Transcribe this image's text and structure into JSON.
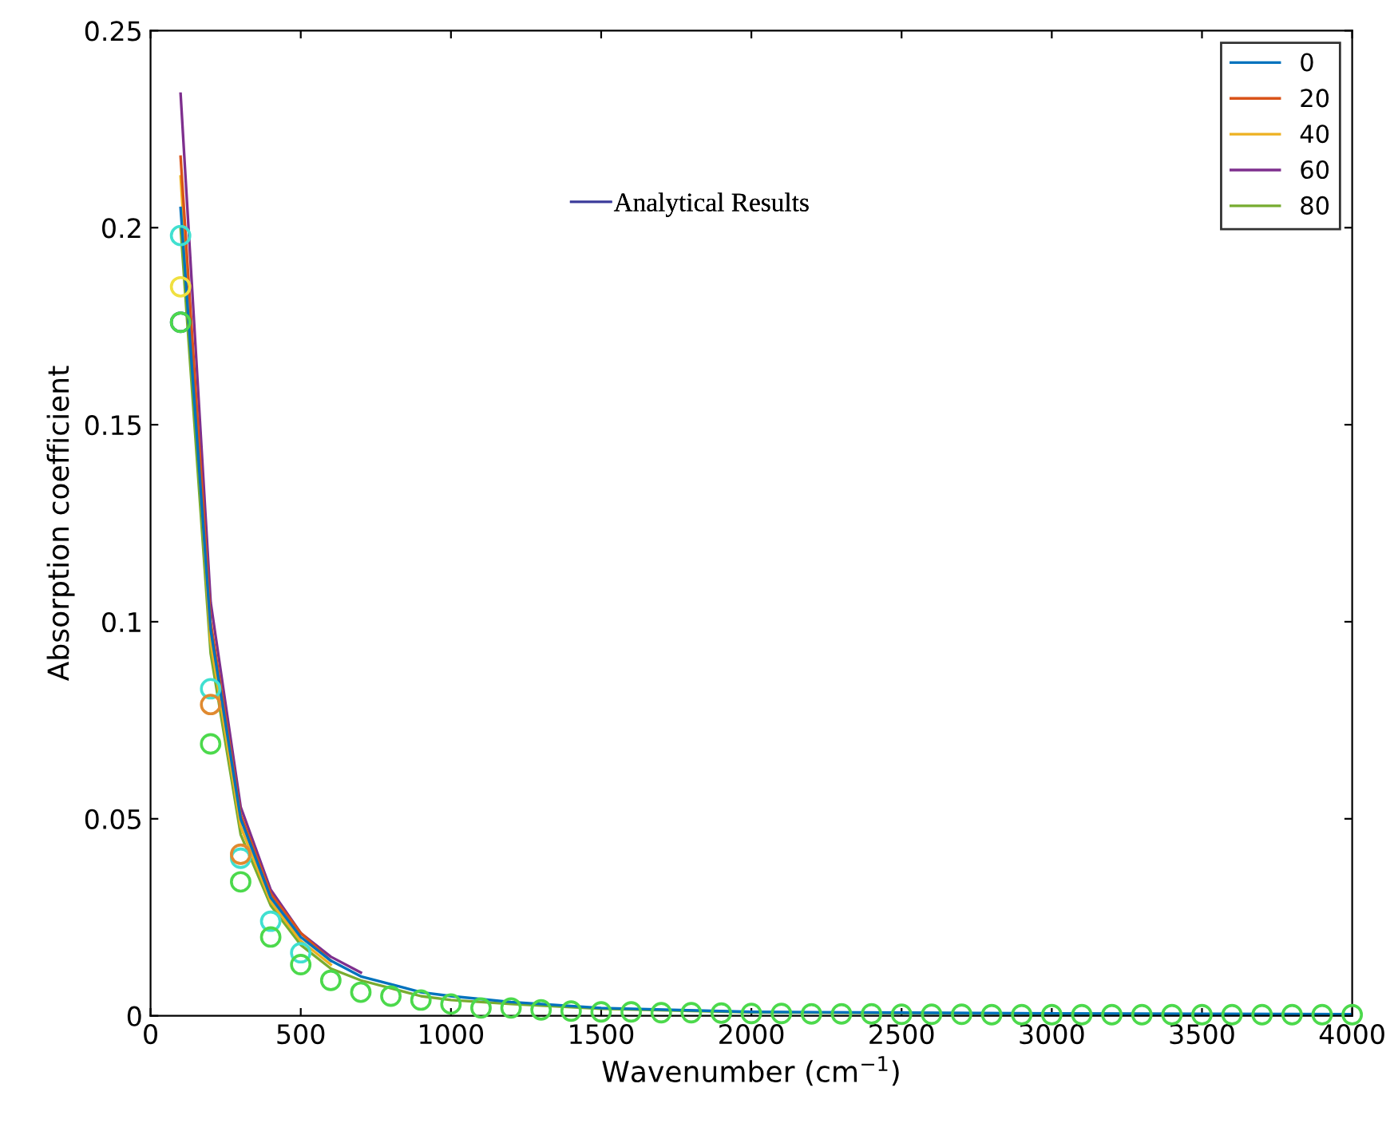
{
  "chart_data": {
    "type": "line",
    "xlabel": "Wavenumber (cm$^{−1}$)",
    "ylabel": "Absorption coefficient",
    "xlim": [
      0,
      4000
    ],
    "ylim": [
      0,
      0.25
    ],
    "xticks": [
      0,
      500,
      1000,
      1500,
      2000,
      2500,
      3000,
      3500,
      4000
    ],
    "yticks": [
      0,
      0.05,
      0.1,
      0.15,
      0.2,
      0.25
    ],
    "grid": false,
    "legend": "top right",
    "annotations": [
      "Analytical Results"
    ],
    "series": [
      {
        "name": "0",
        "color": "#0072bd",
        "x": [
          100,
          200,
          300,
          400,
          500,
          600,
          700,
          800,
          900,
          1000,
          1200,
          1500,
          2000,
          2500,
          3000,
          3500,
          4000
        ],
        "values": [
          0.205,
          0.098,
          0.05,
          0.03,
          0.02,
          0.014,
          0.01,
          0.008,
          0.006,
          0.005,
          0.0035,
          0.002,
          0.001,
          0.0008,
          0.0006,
          0.0005,
          0.0004
        ]
      },
      {
        "name": "20",
        "color": "#d95319",
        "x": [
          100,
          200,
          300,
          400,
          500,
          600
        ],
        "values": [
          0.218,
          0.1,
          0.051,
          0.031,
          0.021,
          0.014
        ]
      },
      {
        "name": "40",
        "color": "#edb120",
        "x": [
          100,
          200,
          300,
          400,
          500,
          600
        ],
        "values": [
          0.213,
          0.095,
          0.048,
          0.029,
          0.019,
          0.013
        ]
      },
      {
        "name": "60",
        "color": "#7e2f8e",
        "x": [
          100,
          200,
          300,
          400,
          500,
          600,
          700
        ],
        "values": [
          0.234,
          0.105,
          0.053,
          0.032,
          0.021,
          0.015,
          0.011
        ]
      },
      {
        "name": "80",
        "color": "#77ac30",
        "x": [
          100,
          200,
          300,
          400,
          500,
          600,
          700,
          800,
          900,
          1000,
          1200,
          1500,
          2000,
          2500,
          3000,
          3500,
          4000
        ],
        "values": [
          0.2,
          0.092,
          0.046,
          0.028,
          0.018,
          0.012,
          0.009,
          0.007,
          0.005,
          0.004,
          0.003,
          0.0018,
          0.0009,
          0.0007,
          0.0005,
          0.0004,
          0.0003
        ]
      },
      {
        "type": "scatter",
        "marker": "circle",
        "color": "#40e0d0",
        "x": [
          100,
          200,
          300,
          400,
          500
        ],
        "values": [
          0.198,
          0.083,
          0.04,
          0.024,
          0.016
        ]
      },
      {
        "type": "scatter",
        "marker": "circle",
        "color": "#f0e040",
        "x": [
          100
        ],
        "values": [
          0.185
        ]
      },
      {
        "type": "scatter",
        "marker": "circle",
        "color": "#1f3f9f",
        "x": [
          100
        ],
        "values": [
          0.176
        ]
      },
      {
        "type": "scatter",
        "marker": "circle",
        "color": "#e08a30",
        "x": [
          200,
          300
        ],
        "values": [
          0.079,
          0.041
        ]
      },
      {
        "type": "scatter",
        "marker": "circle",
        "color": "#4cd94c",
        "x": [
          100,
          200,
          300,
          400,
          500,
          600,
          700,
          800,
          900,
          1000,
          1100,
          1200,
          1300,
          1400,
          1500,
          1600,
          1700,
          1800,
          1900,
          2000,
          2100,
          2200,
          2300,
          2400,
          2500,
          2600,
          2700,
          2800,
          2900,
          3000,
          3100,
          3200,
          3300,
          3400,
          3500,
          3600,
          3700,
          3800,
          3900,
          4000
        ],
        "values": [
          0.176,
          0.069,
          0.034,
          0.02,
          0.013,
          0.009,
          0.006,
          0.005,
          0.004,
          0.003,
          0.002,
          0.002,
          0.0015,
          0.0012,
          0.001,
          0.001,
          0.0008,
          0.0008,
          0.0007,
          0.0006,
          0.0006,
          0.0005,
          0.0005,
          0.0005,
          0.0004,
          0.0004,
          0.0004,
          0.0003,
          0.0003,
          0.0003,
          0.0003,
          0.0003,
          0.0003,
          0.0003,
          0.0003,
          0.0003,
          0.0003,
          0.0003,
          0.0003,
          0.0003
        ]
      }
    ]
  }
}
